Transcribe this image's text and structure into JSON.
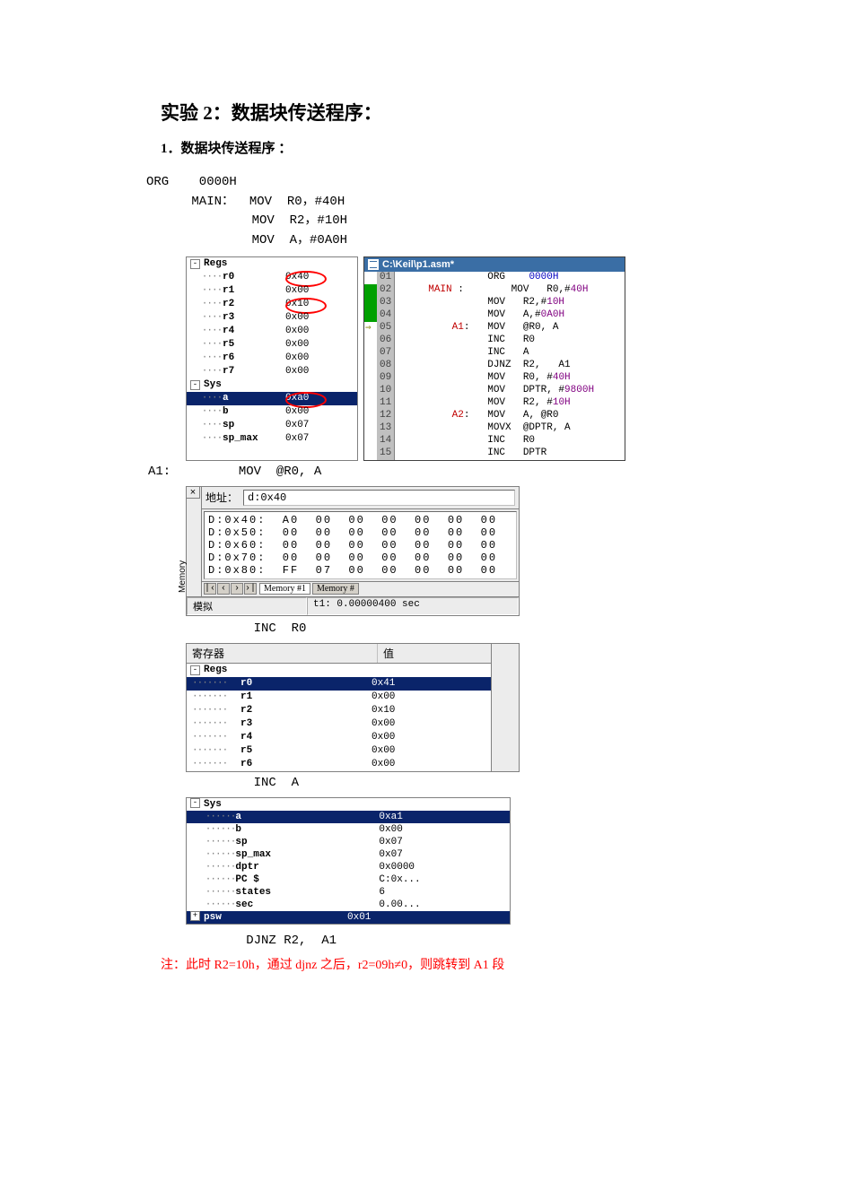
{
  "title": "实验 2：数据块传送程序：",
  "subtitle": "1．数据块传送程序  ：",
  "code_intro": "ORG    0000H\n      MAIN：  MOV  R0，#40H\n              MOV  R2，#10H\n              MOV  A，#0A0H",
  "regs1": {
    "header": "Regs",
    "rows": [
      {
        "n": "r0",
        "v": "0x40",
        "circle": true
      },
      {
        "n": "r1",
        "v": "0x00"
      },
      {
        "n": "r2",
        "v": "0x10",
        "circle": true
      },
      {
        "n": "r3",
        "v": "0x00"
      },
      {
        "n": "r4",
        "v": "0x00"
      },
      {
        "n": "r5",
        "v": "0x00"
      },
      {
        "n": "r6",
        "v": "0x00"
      },
      {
        "n": "r7",
        "v": "0x00"
      }
    ],
    "sys_header": "Sys",
    "sys_rows": [
      {
        "n": "a",
        "v": "0xa0",
        "sel": true,
        "circle": true
      },
      {
        "n": "b",
        "v": "0x00"
      },
      {
        "n": "sp",
        "v": "0x07"
      },
      {
        "n": "sp_max",
        "v": "0x07"
      }
    ]
  },
  "codefile": {
    "title": "C:\\Keil\\p1.asm*",
    "lines": [
      {
        "ln": "01",
        "mark": "",
        "txt": [
          "               ORG    ",
          {
            "c": "kw-blue",
            "t": "0000H"
          }
        ]
      },
      {
        "ln": "02",
        "mark": "g",
        "txt": [
          "     ",
          {
            "c": "kw-red",
            "t": "MAIN"
          },
          " :        MOV   R0,#",
          {
            "c": "kw-purple",
            "t": "40H"
          }
        ]
      },
      {
        "ln": "03",
        "mark": "g",
        "txt": [
          "               MOV   R2,#",
          {
            "c": "kw-purple",
            "t": "10H"
          }
        ]
      },
      {
        "ln": "04",
        "mark": "g",
        "txt": [
          "               MOV   A,#",
          {
            "c": "kw-purple",
            "t": "0A0H"
          }
        ]
      },
      {
        "ln": "05",
        "mark": "a",
        "txt": [
          "         ",
          {
            "c": "kw-red",
            "t": "A1"
          },
          ":   MOV   @R0, A"
        ]
      },
      {
        "ln": "06",
        "mark": "",
        "txt": [
          "               INC   R0"
        ]
      },
      {
        "ln": "07",
        "mark": "",
        "txt": [
          "               INC   A"
        ]
      },
      {
        "ln": "08",
        "mark": "",
        "txt": [
          "               DJNZ  R2,   A1"
        ]
      },
      {
        "ln": "09",
        "mark": "",
        "txt": [
          "               MOV   R0, #",
          {
            "c": "kw-purple",
            "t": "40H"
          }
        ]
      },
      {
        "ln": "10",
        "mark": "",
        "txt": [
          "               MOV   DPTR, #",
          {
            "c": "kw-purple",
            "t": "9800H"
          }
        ]
      },
      {
        "ln": "11",
        "mark": "",
        "txt": [
          "               MOV   R2, #",
          {
            "c": "kw-purple",
            "t": "10H"
          }
        ]
      },
      {
        "ln": "12",
        "mark": "",
        "txt": [
          "         ",
          {
            "c": "kw-red",
            "t": "A2"
          },
          ":   MOV   A, @R0"
        ]
      },
      {
        "ln": "13",
        "mark": "",
        "txt": [
          "               MOVX  @DPTR, A"
        ]
      },
      {
        "ln": "14",
        "mark": "",
        "txt": [
          "               INC   R0"
        ]
      },
      {
        "ln": "15",
        "mark": "",
        "txt": [
          "               INC   DPTR"
        ]
      }
    ]
  },
  "line_a1": "A1:         MOV  @R0, A",
  "mem": {
    "addr_label": "地址：",
    "addr_value": "d:0x40",
    "side": "Memory",
    "rows": [
      "D:0x40:  A0  00  00  00  00  00  00",
      "D:0x50:  00  00  00  00  00  00  00",
      "D:0x60:  00  00  00  00  00  00  00",
      "D:0x70:  00  00  00  00  00  00  00",
      "D:0x80:  FF  07  00  00  00  00  00"
    ],
    "tab1": "Memory #1",
    "tab2": "Memory #",
    "status_left": "模拟",
    "status_right": "t1: 0.00000400 sec"
  },
  "line_inc_r0": "              INC  R0",
  "regtable": {
    "h1": "寄存器",
    "h2": "值",
    "group": "Regs",
    "rows": [
      {
        "n": "r0",
        "v": "0x41",
        "sel": true
      },
      {
        "n": "r1",
        "v": "0x00"
      },
      {
        "n": "r2",
        "v": "0x10"
      },
      {
        "n": "r3",
        "v": "0x00"
      },
      {
        "n": "r4",
        "v": "0x00"
      },
      {
        "n": "r5",
        "v": "0x00"
      },
      {
        "n": "r6",
        "v": "0x00"
      }
    ]
  },
  "line_inc_a": "              INC  A",
  "sys": {
    "header": "Sys",
    "rows": [
      {
        "n": "a",
        "v": "0xa1",
        "sel": true
      },
      {
        "n": "b",
        "v": "0x00"
      },
      {
        "n": "sp",
        "v": "0x07"
      },
      {
        "n": "sp_max",
        "v": "0x07"
      },
      {
        "n": "dptr",
        "v": "0x0000"
      },
      {
        "n": "PC   $",
        "v": "C:0x..."
      },
      {
        "n": "states",
        "v": "6"
      },
      {
        "n": "sec",
        "v": "0.00..."
      }
    ],
    "psw": {
      "n": "psw",
      "v": "0x01",
      "sel": true
    }
  },
  "line_djnz": "             DJNZ R2,  A1",
  "note": "注：此时 R2=10h，通过 djnz 之后，r2=09h≠0，则跳转到 A1 段"
}
